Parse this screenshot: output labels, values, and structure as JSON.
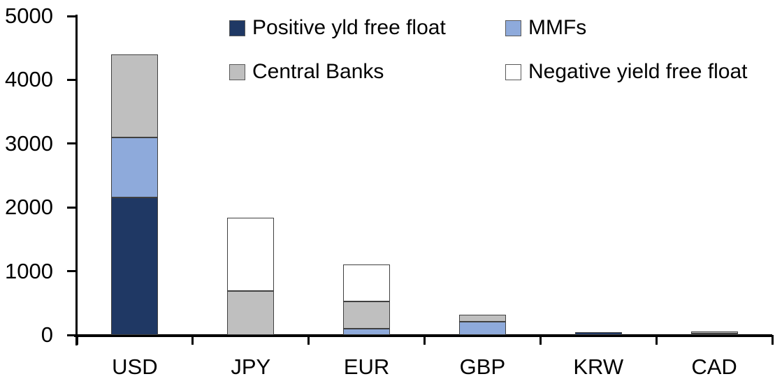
{
  "chart_data": {
    "type": "bar",
    "stacked": true,
    "title": "",
    "xlabel": "",
    "ylabel": "",
    "categories": [
      "USD",
      "JPY",
      "EUR",
      "GBP",
      "KRW",
      "CAD"
    ],
    "series": [
      {
        "name": "Positive yld free float",
        "color": "#1F3864",
        "values": [
          2150,
          0,
          0,
          0,
          40,
          25
        ]
      },
      {
        "name": "MMFs",
        "color": "#8EAADB",
        "values": [
          950,
          0,
          100,
          210,
          0,
          0
        ]
      },
      {
        "name": "Central Banks",
        "color": "#BFBFBF",
        "values": [
          1300,
          690,
          430,
          110,
          0,
          30
        ]
      },
      {
        "name": "Negative yield free float",
        "color": "#FFFFFF",
        "values": [
          0,
          1150,
          570,
          0,
          0,
          0
        ]
      }
    ],
    "ylim": [
      0,
      5000
    ],
    "ytick_interval": 1000,
    "ytick_labels": [
      "0",
      "1000",
      "2000",
      "3000",
      "4000",
      "5000"
    ],
    "legend_position": "top",
    "grid": false
  },
  "colors": {
    "background": "#FFFFFF",
    "axis": "#000000",
    "text": "#000000",
    "segment_border": "#404040",
    "swatch_border": "#595959"
  }
}
